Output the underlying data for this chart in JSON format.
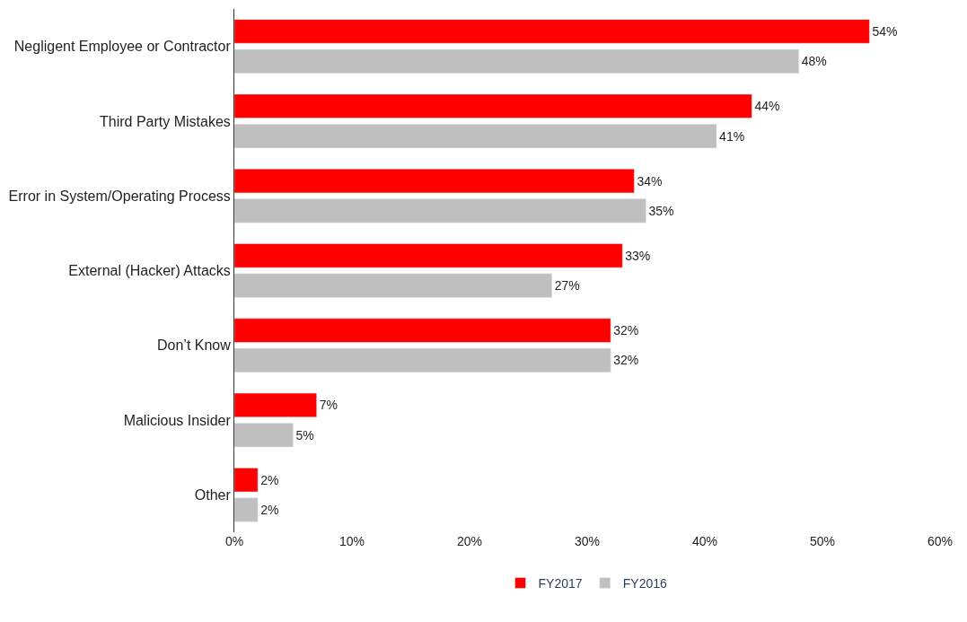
{
  "chart_data": {
    "type": "bar",
    "orientation": "horizontal",
    "categories": [
      "Negligent Employee or Contractor",
      "Third Party Mistakes",
      "Error in System/Operating Process",
      "External (Hacker) Attacks",
      "Don’t Know",
      "Malicious Insider",
      "Other"
    ],
    "series": [
      {
        "name": "FY2017",
        "color": "#ff0000",
        "values": [
          54,
          44,
          34,
          33,
          32,
          7,
          2
        ],
        "value_labels": [
          "54%",
          "44%",
          "34%",
          "33%",
          "32%",
          "7%",
          "2%"
        ]
      },
      {
        "name": "FY2016",
        "color": "#bfbfbf",
        "values": [
          48,
          41,
          35,
          27,
          32,
          5,
          2
        ],
        "value_labels": [
          "48%",
          "41%",
          "35%",
          "27%",
          "32%",
          "5%",
          "2%"
        ]
      }
    ],
    "xlim": [
      0,
      60
    ],
    "xticks": [
      {
        "value": 0,
        "label": "0%"
      },
      {
        "value": 10,
        "label": "10%"
      },
      {
        "value": 20,
        "label": "20%"
      },
      {
        "value": 30,
        "label": "30%"
      },
      {
        "value": 40,
        "label": "40%"
      },
      {
        "value": 50,
        "label": "50%"
      },
      {
        "value": 60,
        "label": "60%"
      }
    ],
    "legend": "bottom"
  }
}
